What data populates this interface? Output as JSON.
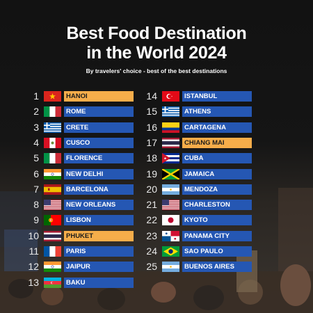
{
  "title": {
    "line1": "Best Food Destination",
    "line2": "in the World 2024"
  },
  "subtitle": "By travelers' choice - best of the best destinations",
  "colors": {
    "bar": "#2557b3",
    "highlight": "#f6ad4a",
    "background": "#121212"
  },
  "ranking": [
    {
      "rank": "1",
      "city": "HANOI",
      "flag": "vietnam-flag-icon",
      "highlight": true
    },
    {
      "rank": "2",
      "city": "ROME",
      "flag": "italy-flag-icon",
      "highlight": false
    },
    {
      "rank": "3",
      "city": "CRETE",
      "flag": "greece-flag-icon",
      "highlight": false
    },
    {
      "rank": "4",
      "city": "CUSCO",
      "flag": "peru-flag-icon",
      "highlight": false
    },
    {
      "rank": "5",
      "city": "FLORENCE",
      "flag": "italy-flag-icon",
      "highlight": false
    },
    {
      "rank": "6",
      "city": "NEW DELHI",
      "flag": "india-flag-icon",
      "highlight": false
    },
    {
      "rank": "7",
      "city": "BARCELONA",
      "flag": "spain-flag-icon",
      "highlight": false
    },
    {
      "rank": "8",
      "city": "NEW ORLEANS",
      "flag": "usa-flag-icon",
      "highlight": false
    },
    {
      "rank": "9",
      "city": "LISBON",
      "flag": "portugal-flag-icon",
      "highlight": false
    },
    {
      "rank": "10",
      "city": "PHUKET",
      "flag": "thailand-flag-icon",
      "highlight": true
    },
    {
      "rank": "11",
      "city": "PARIS",
      "flag": "france-flag-icon",
      "highlight": false
    },
    {
      "rank": "12",
      "city": "JAIPUR",
      "flag": "india-flag-icon",
      "highlight": false
    },
    {
      "rank": "13",
      "city": "BAKU",
      "flag": "azerbaijan-flag-icon",
      "highlight": false
    },
    {
      "rank": "14",
      "city": "ISTANBUL",
      "flag": "turkey-flag-icon",
      "highlight": false
    },
    {
      "rank": "15",
      "city": "ATHENS",
      "flag": "greece-flag-icon",
      "highlight": false
    },
    {
      "rank": "16",
      "city": "CARTAGENA",
      "flag": "colombia-flag-icon",
      "highlight": false
    },
    {
      "rank": "17",
      "city": "CHIANG MAI",
      "flag": "thailand-flag-icon",
      "highlight": true
    },
    {
      "rank": "18",
      "city": "CUBA",
      "flag": "cuba-flag-icon",
      "highlight": false
    },
    {
      "rank": "19",
      "city": "JAMAICA",
      "flag": "jamaica-flag-icon",
      "highlight": false
    },
    {
      "rank": "20",
      "city": "MENDOZA",
      "flag": "argentina-flag-icon",
      "highlight": false
    },
    {
      "rank": "21",
      "city": "CHARLESTON",
      "flag": "usa-flag-icon",
      "highlight": false
    },
    {
      "rank": "22",
      "city": "KYOTO",
      "flag": "japan-flag-icon",
      "highlight": false
    },
    {
      "rank": "23",
      "city": "PANAMA CITY",
      "flag": "panama-flag-icon",
      "highlight": false
    },
    {
      "rank": "24",
      "city": "SAO PAULO",
      "flag": "brazil-flag-icon",
      "highlight": false
    },
    {
      "rank": "25",
      "city": "BUENOS AIRES",
      "flag": "argentina-flag-icon",
      "highlight": false
    }
  ]
}
